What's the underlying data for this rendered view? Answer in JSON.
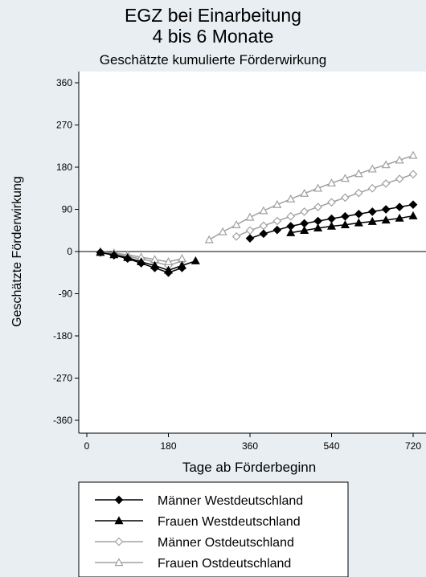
{
  "chart_data": {
    "type": "line",
    "title": "EGZ bei Einarbeitung",
    "title_line2": "4 bis 6 Monate",
    "subtitle": "Geschätzte kumulierte Förderwirkung",
    "xlabel": "Tage ab Förderbeginn",
    "ylabel": "Geschätzte Förderwirkung",
    "xlim": [
      0,
      730
    ],
    "ylim": [
      -380,
      380
    ],
    "x_ticks": [
      0,
      180,
      360,
      540,
      720
    ],
    "y_ticks": [
      360,
      270,
      180,
      90,
      0,
      -90,
      -180,
      -270,
      -360
    ],
    "grid": false,
    "legend_position": "bottom",
    "colors": {
      "background": "#e8eef2",
      "plot": "#ffffff",
      "black": "#000000",
      "gray": "#a0a0a0"
    },
    "series": [
      {
        "name": "Männer Westdeutschland",
        "color": "#000000",
        "marker": "diamond-filled",
        "segments": [
          [
            [
              30,
              -2
            ],
            [
              60,
              -8
            ],
            [
              90,
              -15
            ],
            [
              120,
              -25
            ],
            [
              150,
              -35
            ],
            [
              180,
              -45
            ],
            [
              210,
              -35
            ]
          ],
          [
            [
              360,
              28
            ],
            [
              390,
              38
            ],
            [
              420,
              46
            ],
            [
              450,
              54
            ],
            [
              480,
              60
            ],
            [
              510,
              65
            ],
            [
              540,
              70
            ],
            [
              570,
              75
            ],
            [
              600,
              80
            ],
            [
              630,
              85
            ],
            [
              660,
              90
            ],
            [
              690,
              95
            ],
            [
              720,
              100
            ]
          ]
        ]
      },
      {
        "name": "Frauen Westdeutschland",
        "color": "#000000",
        "marker": "triangle-filled",
        "segments": [
          [
            [
              30,
              -2
            ],
            [
              60,
              -7
            ],
            [
              90,
              -13
            ],
            [
              120,
              -22
            ],
            [
              150,
              -30
            ],
            [
              180,
              -40
            ],
            [
              210,
              -30
            ],
            [
              240,
              -20
            ]
          ],
          [
            [
              450,
              40
            ],
            [
              480,
              45
            ],
            [
              510,
              50
            ],
            [
              540,
              54
            ],
            [
              570,
              57
            ],
            [
              600,
              61
            ],
            [
              630,
              64
            ],
            [
              660,
              67
            ],
            [
              690,
              71
            ],
            [
              720,
              76
            ]
          ]
        ]
      },
      {
        "name": "Männer Ostdeutschland",
        "color": "#a0a0a0",
        "marker": "diamond-hollow",
        "segments": [
          [
            [
              30,
              -1
            ],
            [
              60,
              -5
            ],
            [
              90,
              -10
            ],
            [
              120,
              -16
            ],
            [
              150,
              -22
            ],
            [
              180,
              -30
            ],
            [
              210,
              -20
            ]
          ],
          [
            [
              330,
              32
            ],
            [
              360,
              45
            ],
            [
              390,
              55
            ],
            [
              420,
              65
            ],
            [
              450,
              75
            ],
            [
              480,
              85
            ],
            [
              510,
              95
            ],
            [
              540,
              105
            ],
            [
              570,
              115
            ],
            [
              600,
              125
            ],
            [
              630,
              135
            ],
            [
              660,
              145
            ],
            [
              690,
              155
            ],
            [
              720,
              165
            ]
          ]
        ]
      },
      {
        "name": "Frauen Ostdeutschland",
        "color": "#a0a0a0",
        "marker": "triangle-hollow",
        "segments": [
          [
            [
              30,
              0
            ],
            [
              60,
              -3
            ],
            [
              90,
              -7
            ],
            [
              120,
              -12
            ],
            [
              150,
              -17
            ],
            [
              180,
              -22
            ],
            [
              210,
              -15
            ]
          ],
          [
            [
              270,
              25
            ],
            [
              300,
              42
            ],
            [
              330,
              57
            ],
            [
              360,
              73
            ],
            [
              390,
              87
            ],
            [
              420,
              100
            ],
            [
              450,
              112
            ],
            [
              480,
              124
            ],
            [
              510,
              135
            ],
            [
              540,
              146
            ],
            [
              570,
              156
            ],
            [
              600,
              166
            ],
            [
              630,
              176
            ],
            [
              660,
              185
            ],
            [
              690,
              195
            ],
            [
              720,
              205
            ]
          ]
        ]
      }
    ]
  }
}
